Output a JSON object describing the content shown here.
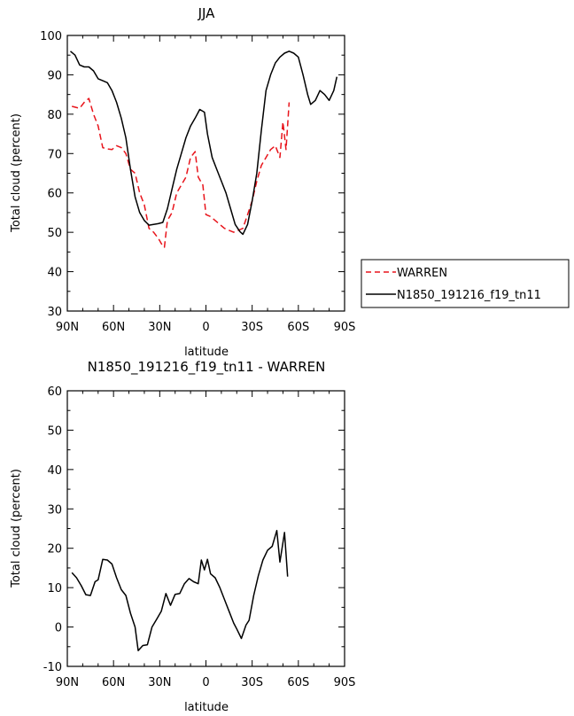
{
  "chart_data": [
    {
      "type": "line",
      "title": "JJA",
      "xlabel": "latitude",
      "ylabel": "Total cloud (percent)",
      "xlim": [
        90,
        -90
      ],
      "ylim": [
        30,
        100
      ],
      "x_ticks": [
        {
          "value": 90,
          "label": "90N"
        },
        {
          "value": 60,
          "label": "60N"
        },
        {
          "value": 30,
          "label": "30N"
        },
        {
          "value": 0,
          "label": "0"
        },
        {
          "value": -30,
          "label": "30S"
        },
        {
          "value": -60,
          "label": "60S"
        },
        {
          "value": -90,
          "label": "90S"
        }
      ],
      "y_ticks": [
        30,
        40,
        50,
        60,
        70,
        80,
        90,
        100
      ],
      "legend_position": "right",
      "series": [
        {
          "name": "WARREN",
          "color": "#e8141b",
          "dash": "dashed",
          "points": [
            [
              87,
              82
            ],
            [
              82,
              81.5
            ],
            [
              79,
              83
            ],
            [
              76,
              84
            ],
            [
              73,
              80
            ],
            [
              70,
              77
            ],
            [
              67,
              71.5
            ],
            [
              64,
              71.2
            ],
            [
              61,
              71
            ],
            [
              58,
              72
            ],
            [
              55,
              71.5
            ],
            [
              52,
              70
            ],
            [
              49,
              66
            ],
            [
              46,
              65
            ],
            [
              43,
              60
            ],
            [
              40,
              57
            ],
            [
              37,
              51
            ],
            [
              34,
              50
            ],
            [
              31,
              48.5
            ],
            [
              28,
              46.5
            ],
            [
              27,
              46.2
            ],
            [
              25,
              53
            ],
            [
              22,
              55
            ],
            [
              19,
              60
            ],
            [
              16,
              62
            ],
            [
              13,
              64
            ],
            [
              10,
              69
            ],
            [
              7,
              70.5
            ],
            [
              5,
              64
            ],
            [
              2,
              62
            ],
            [
              0,
              54.5
            ],
            [
              -3,
              54
            ],
            [
              -6,
              53
            ],
            [
              -9,
              52
            ],
            [
              -12,
              51
            ],
            [
              -15,
              50.5
            ],
            [
              -18,
              50
            ],
            [
              -21,
              50.5
            ],
            [
              -24,
              51
            ],
            [
              -27,
              54.5
            ],
            [
              -30,
              58
            ],
            [
              -33,
              63
            ],
            [
              -36,
              67
            ],
            [
              -39,
              69
            ],
            [
              -42,
              71
            ],
            [
              -45,
              72
            ],
            [
              -48,
              69
            ],
            [
              -50,
              78
            ],
            [
              -52,
              71
            ],
            [
              -54,
              83
            ]
          ]
        },
        {
          "name": "N1850_191216_f19_tn11",
          "color": "#000000",
          "dash": "solid",
          "points": [
            [
              88,
              96
            ],
            [
              85,
              95
            ],
            [
              82,
              92.5
            ],
            [
              79,
              92
            ],
            [
              76,
              92
            ],
            [
              73,
              91
            ],
            [
              70,
              89
            ],
            [
              67,
              88.5
            ],
            [
              64,
              88
            ],
            [
              61,
              86
            ],
            [
              58,
              83
            ],
            [
              55,
              79
            ],
            [
              52,
              74
            ],
            [
              49,
              66
            ],
            [
              46,
              59
            ],
            [
              43,
              55
            ],
            [
              40,
              53
            ],
            [
              37,
              51.8
            ],
            [
              34,
              52
            ],
            [
              31,
              52.2
            ],
            [
              28,
              52.5
            ],
            [
              25,
              56
            ],
            [
              22,
              61
            ],
            [
              19,
              66
            ],
            [
              16,
              70
            ],
            [
              13,
              74
            ],
            [
              10,
              77
            ],
            [
              7,
              79
            ],
            [
              4,
              81.2
            ],
            [
              1,
              80.5
            ],
            [
              -1,
              75
            ],
            [
              -4,
              69
            ],
            [
              -7,
              66
            ],
            [
              -10,
              63
            ],
            [
              -13,
              60
            ],
            [
              -16,
              56
            ],
            [
              -19,
              52
            ],
            [
              -22,
              50.2
            ],
            [
              -24,
              49.5
            ],
            [
              -27,
              52
            ],
            [
              -30,
              58
            ],
            [
              -33,
              65
            ],
            [
              -36,
              76
            ],
            [
              -39,
              86
            ],
            [
              -42,
              90
            ],
            [
              -45,
              93
            ],
            [
              -48,
              94.5
            ],
            [
              -51,
              95.5
            ],
            [
              -54,
              96
            ],
            [
              -57,
              95.5
            ],
            [
              -60,
              94.5
            ],
            [
              -63,
              90
            ],
            [
              -66,
              85
            ],
            [
              -68,
              82.5
            ],
            [
              -71,
              83.5
            ],
            [
              -74,
              86
            ],
            [
              -77,
              85
            ],
            [
              -80,
              83.5
            ],
            [
              -83,
              86
            ],
            [
              -85,
              89.5
            ]
          ]
        }
      ]
    },
    {
      "type": "line",
      "title": "N1850_191216_f19_tn11 - WARREN",
      "xlabel": "latitude",
      "ylabel": "Total cloud (percent)",
      "xlim": [
        90,
        -90
      ],
      "ylim": [
        -10,
        60
      ],
      "x_ticks": [
        {
          "value": 90,
          "label": "90N"
        },
        {
          "value": 60,
          "label": "60N"
        },
        {
          "value": 30,
          "label": "30N"
        },
        {
          "value": 0,
          "label": "0"
        },
        {
          "value": -30,
          "label": "30S"
        },
        {
          "value": -60,
          "label": "60S"
        },
        {
          "value": -90,
          "label": "90S"
        }
      ],
      "y_ticks": [
        -10,
        0,
        10,
        20,
        30,
        40,
        50,
        60
      ],
      "series": [
        {
          "color": "#000000",
          "dash": "solid",
          "points": [
            [
              87,
              13.8
            ],
            [
              84,
              12.5
            ],
            [
              81,
              10.5
            ],
            [
              78,
              8.2
            ],
            [
              75,
              8
            ],
            [
              72,
              11.5
            ],
            [
              70,
              12
            ],
            [
              67,
              17.2
            ],
            [
              64,
              17
            ],
            [
              61,
              16
            ],
            [
              58,
              12.5
            ],
            [
              55,
              9.5
            ],
            [
              52,
              8
            ],
            [
              49,
              3.5
            ],
            [
              46,
              0
            ],
            [
              44,
              -6
            ],
            [
              41,
              -4.7
            ],
            [
              38,
              -4.5
            ],
            [
              35,
              0
            ],
            [
              32,
              2
            ],
            [
              29,
              4
            ],
            [
              26,
              8.5
            ],
            [
              23,
              5.5
            ],
            [
              20,
              8.3
            ],
            [
              17,
              8.5
            ],
            [
              14,
              11
            ],
            [
              11,
              12.3
            ],
            [
              8,
              11.5
            ],
            [
              5,
              11
            ],
            [
              3,
              17
            ],
            [
              1,
              14.5
            ],
            [
              -1,
              17.2
            ],
            [
              -3,
              13.5
            ],
            [
              -6,
              12.5
            ],
            [
              -9,
              10
            ],
            [
              -12,
              7
            ],
            [
              -15,
              4
            ],
            [
              -18,
              1
            ],
            [
              -20,
              -0.5
            ],
            [
              -23,
              -2.9
            ],
            [
              -26,
              0.5
            ],
            [
              -28,
              1.7
            ],
            [
              -31,
              8
            ],
            [
              -34,
              13
            ],
            [
              -37,
              17
            ],
            [
              -40,
              19.5
            ],
            [
              -43,
              20.5
            ],
            [
              -46,
              24.5
            ],
            [
              -48,
              16.5
            ],
            [
              -51,
              24
            ],
            [
              -53,
              12.8
            ]
          ]
        }
      ]
    }
  ]
}
